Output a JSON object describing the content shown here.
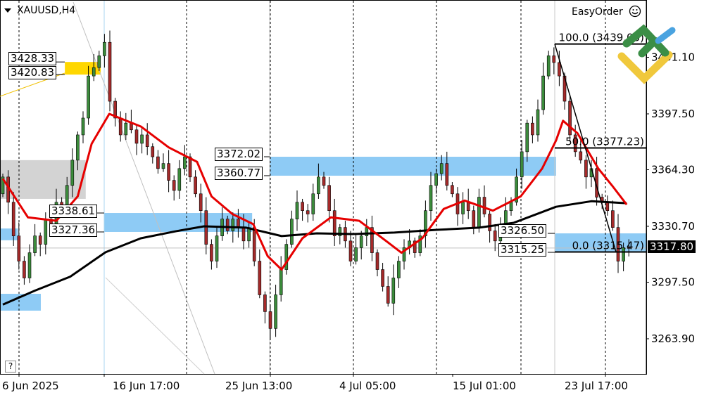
{
  "header": {
    "symbol": "XAUUSD,H4",
    "easyorder_label": "EasyOrder"
  },
  "help_label": "?",
  "current_price": "3317.80",
  "colors": {
    "bull": "#3c8c3c",
    "bear": "#a52a2a",
    "ma_fast": "#e60000",
    "ma_slow": "#000000",
    "zone_blue": "#8ecbf5",
    "zone_yellow": "#ffd700",
    "zone_gray": "#d3d3d3"
  },
  "chart_data": {
    "type": "candlestick",
    "y_ticks": [
      "3431.10",
      "3397.50",
      "3364.30",
      "3330.70",
      "3297.50",
      "3263.90"
    ],
    "x_tick_labels": [
      "6 Jun 2025",
      "16 Jun 17:00",
      "25 Jun 13:00",
      "4 Jul 05:00",
      "15 Jul 01:00",
      "23 Jul 17:00"
    ],
    "ylim": [
      3245,
      3466
    ],
    "closes": [
      3360,
      3345,
      3325,
      3310,
      3300,
      3315,
      3325,
      3320,
      3335,
      3330,
      3345,
      3340,
      3355,
      3370,
      3385,
      3395,
      3420,
      3425,
      3432,
      3440,
      3405,
      3395,
      3385,
      3392,
      3388,
      3380,
      3385,
      3378,
      3372,
      3365,
      3368,
      3358,
      3352,
      3365,
      3372,
      3360,
      3350,
      3340,
      3320,
      3310,
      3325,
      3335,
      3328,
      3335,
      3330,
      3322,
      3330,
      3310,
      3290,
      3280,
      3270,
      3290,
      3305,
      3320,
      3335,
      3345,
      3340,
      3338,
      3350,
      3360,
      3355,
      3340,
      3325,
      3330,
      3322,
      3310,
      3318,
      3325,
      3330,
      3315,
      3305,
      3295,
      3285,
      3300,
      3310,
      3318,
      3322,
      3315,
      3325,
      3340,
      3355,
      3362,
      3368,
      3355,
      3350,
      3338,
      3345,
      3340,
      3330,
      3348,
      3338,
      3328,
      3322,
      3330,
      3340,
      3345,
      3360,
      3375,
      3392,
      3385,
      3400,
      3420,
      3432,
      3428,
      3420,
      3405,
      3385,
      3375,
      3370,
      3360,
      3365,
      3348,
      3345,
      3340,
      3330,
      3310,
      3318,
      3317.8
    ],
    "ma_fast": [
      [
        0,
        3359
      ],
      [
        4.7,
        3336
      ],
      [
        10,
        3334
      ],
      [
        14,
        3348.5
      ],
      [
        16.6,
        3379.7
      ],
      [
        19.9,
        3397.5
      ],
      [
        25.8,
        3390
      ],
      [
        31,
        3377.6
      ],
      [
        36.3,
        3369
      ],
      [
        39,
        3348.5
      ],
      [
        42.9,
        3338
      ],
      [
        46.8,
        3332
      ],
      [
        49.5,
        3313
      ],
      [
        52.1,
        3305
      ],
      [
        56,
        3323.6
      ],
      [
        61.3,
        3336
      ],
      [
        66.6,
        3334
      ],
      [
        71.8,
        3321.6
      ],
      [
        74.5,
        3315
      ],
      [
        78.4,
        3323.6
      ],
      [
        82.4,
        3341
      ],
      [
        86.3,
        3346
      ],
      [
        91.6,
        3340
      ],
      [
        96.8,
        3348.5
      ],
      [
        100.8,
        3365
      ],
      [
        103.4,
        3381.7
      ],
      [
        104.7,
        3393.4
      ],
      [
        107.4,
        3386
      ],
      [
        111.3,
        3365
      ],
      [
        113.9,
        3354.8
      ],
      [
        116.6,
        3343.6
      ]
    ],
    "ma_slow": [
      [
        0,
        3284.2
      ],
      [
        6,
        3292.5
      ],
      [
        12.6,
        3300.8
      ],
      [
        19.2,
        3315.3
      ],
      [
        25.8,
        3323.6
      ],
      [
        32.4,
        3327.8
      ],
      [
        37.6,
        3330.7
      ],
      [
        45.5,
        3329.9
      ],
      [
        52.1,
        3324.9
      ],
      [
        58.7,
        3326.5
      ],
      [
        65.3,
        3326.1
      ],
      [
        73.2,
        3327
      ],
      [
        81.1,
        3328.6
      ],
      [
        89,
        3329.9
      ],
      [
        95.5,
        3332.8
      ],
      [
        103.4,
        3342.3
      ],
      [
        110,
        3345.6
      ],
      [
        116.6,
        3344.4
      ]
    ],
    "zones": [
      {
        "color": "yellow",
        "i0": 11.6,
        "i1": 18.3,
        "top": 3428.33,
        "bottom": 3420.83
      },
      {
        "color": "gray",
        "i0": -0.5,
        "i1": 15.5,
        "top": 3370,
        "bottom": 3347
      },
      {
        "color": "blue",
        "i0": -0.5,
        "i1": 2.8,
        "top": 3329.4,
        "bottom": 3322.4
      },
      {
        "color": "blue",
        "i0": 19,
        "i1": 46.6,
        "top": 3338.61,
        "bottom": 3327.36
      },
      {
        "color": "blue",
        "i0": 49.9,
        "i1": 103.4,
        "top": 3372.02,
        "bottom": 3360.77
      },
      {
        "color": "blue",
        "i0": -0.5,
        "i1": 7.1,
        "top": 3290.6,
        "bottom": 3280.6
      },
      {
        "color": "blue",
        "i0": 103.2,
        "i1": 121,
        "top": 3326.5,
        "bottom": 3315.25
      }
    ],
    "zone_labels": {
      "yellow_top": "3428.33",
      "yellow_bottom": "3420.83",
      "blue1_top": "3338.61",
      "blue1_bottom": "3327.36",
      "blue2_top": "3372.02",
      "blue2_bottom": "3360.77",
      "blue3_top": "3326.50",
      "blue3_bottom": "3315.25"
    },
    "fibonacci": [
      {
        "label": "100.0 (3439.00)",
        "price": 3439.0
      },
      {
        "label": "50.0 (3377.23)",
        "price": 3377.23
      },
      {
        "label": "0.0 (3315.47)",
        "price": 3315.47
      }
    ]
  }
}
